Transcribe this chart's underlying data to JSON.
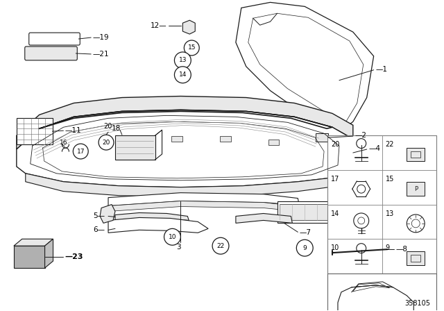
{
  "bg_color": "#ffffff",
  "fig_width": 6.4,
  "fig_height": 4.48,
  "dpi": 100,
  "diagram_id": "358105",
  "line_color": "#1a1a1a",
  "text_color": "#000000",
  "gray_fill": "#d0d0d0",
  "light_gray": "#e8e8e8",
  "mid_gray": "#b0b0b0"
}
